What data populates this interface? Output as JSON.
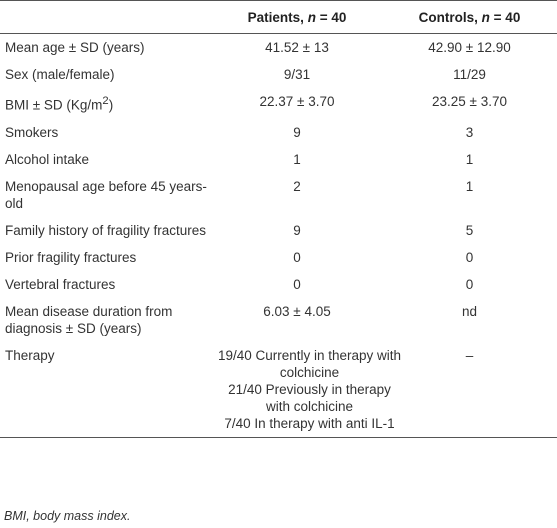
{
  "header": {
    "columns": [
      [
        "Patients, ",
        "n",
        " = 40"
      ],
      [
        "Controls, ",
        "n",
        " = 40"
      ]
    ]
  },
  "table": {
    "rows": [
      [
        "Mean age ± SD (years)",
        "41.52 ± 13",
        "42.90 ± 12.90"
      ],
      [
        "Sex (male/female)",
        "9/31",
        "11/29"
      ],
      [
        [
          "BMI ± SD (Kg/m",
          "2",
          ")"
        ],
        "22.37 ± 3.70",
        "23.25 ± 3.70"
      ],
      [
        "Smokers",
        "9",
        "3"
      ],
      [
        "Alcohol intake",
        "1",
        "1"
      ],
      [
        "Menopausal age before 45 years-old",
        "2",
        "1"
      ],
      [
        "Family history of fragility fractures",
        "9",
        "5"
      ],
      [
        "Prior fragility fractures",
        "0",
        "0"
      ],
      [
        "Vertebral fractures",
        "0",
        "0"
      ],
      [
        "Mean disease duration from diagnosis ± SD (years)",
        "6.03 ± 4.05",
        "nd"
      ],
      [
        "Therapy",
        [
          "19/40 Currently in therapy with colchicine",
          "21/40 Previously in therapy with colchicine",
          "7/40 In therapy with anti IL-1"
        ],
        "–"
      ]
    ]
  },
  "footnote": "BMI, body mass index."
}
